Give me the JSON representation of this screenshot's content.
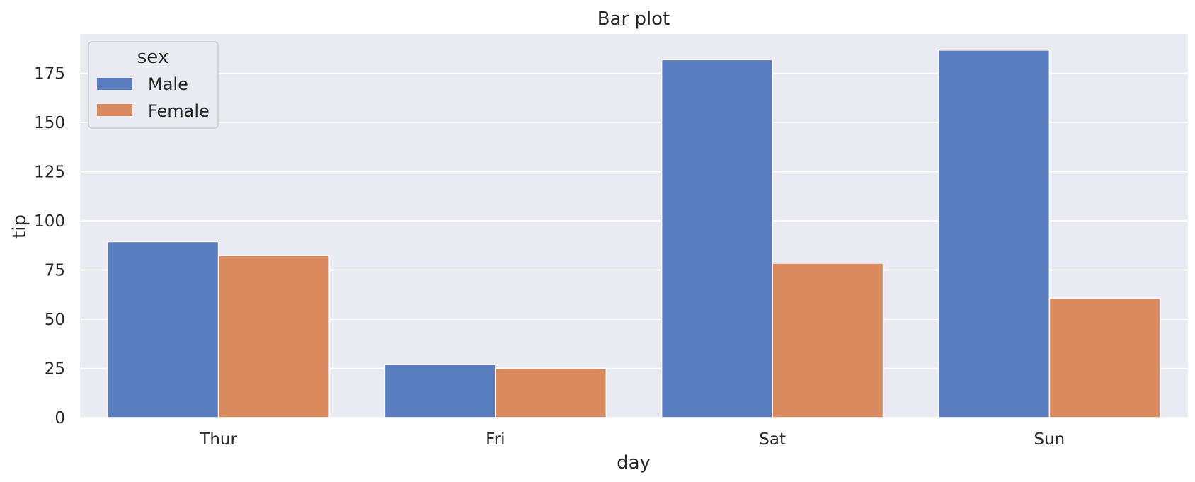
{
  "chart_data": {
    "type": "bar",
    "title": "Bar plot",
    "xlabel": "day",
    "ylabel": "tip",
    "categories": [
      "Thur",
      "Fri",
      "Sat",
      "Sun"
    ],
    "series": [
      {
        "name": "Male",
        "values": [
          89.41,
          26.93,
          181.95,
          186.78
        ],
        "color": "#5a7dbf"
      },
      {
        "name": "Female",
        "values": [
          82.42,
          25.03,
          78.45,
          60.61
        ],
        "color": "#d98a5f"
      }
    ],
    "ylim": [
      0,
      195
    ],
    "yticks": [
      0,
      25,
      50,
      75,
      100,
      125,
      150,
      175
    ],
    "grid": true,
    "legend": {
      "title": "sex",
      "placement": "top-left"
    },
    "colors": {
      "plot_background": "#eaeaf2",
      "grid": "#ffffff",
      "text": "#262626"
    }
  }
}
